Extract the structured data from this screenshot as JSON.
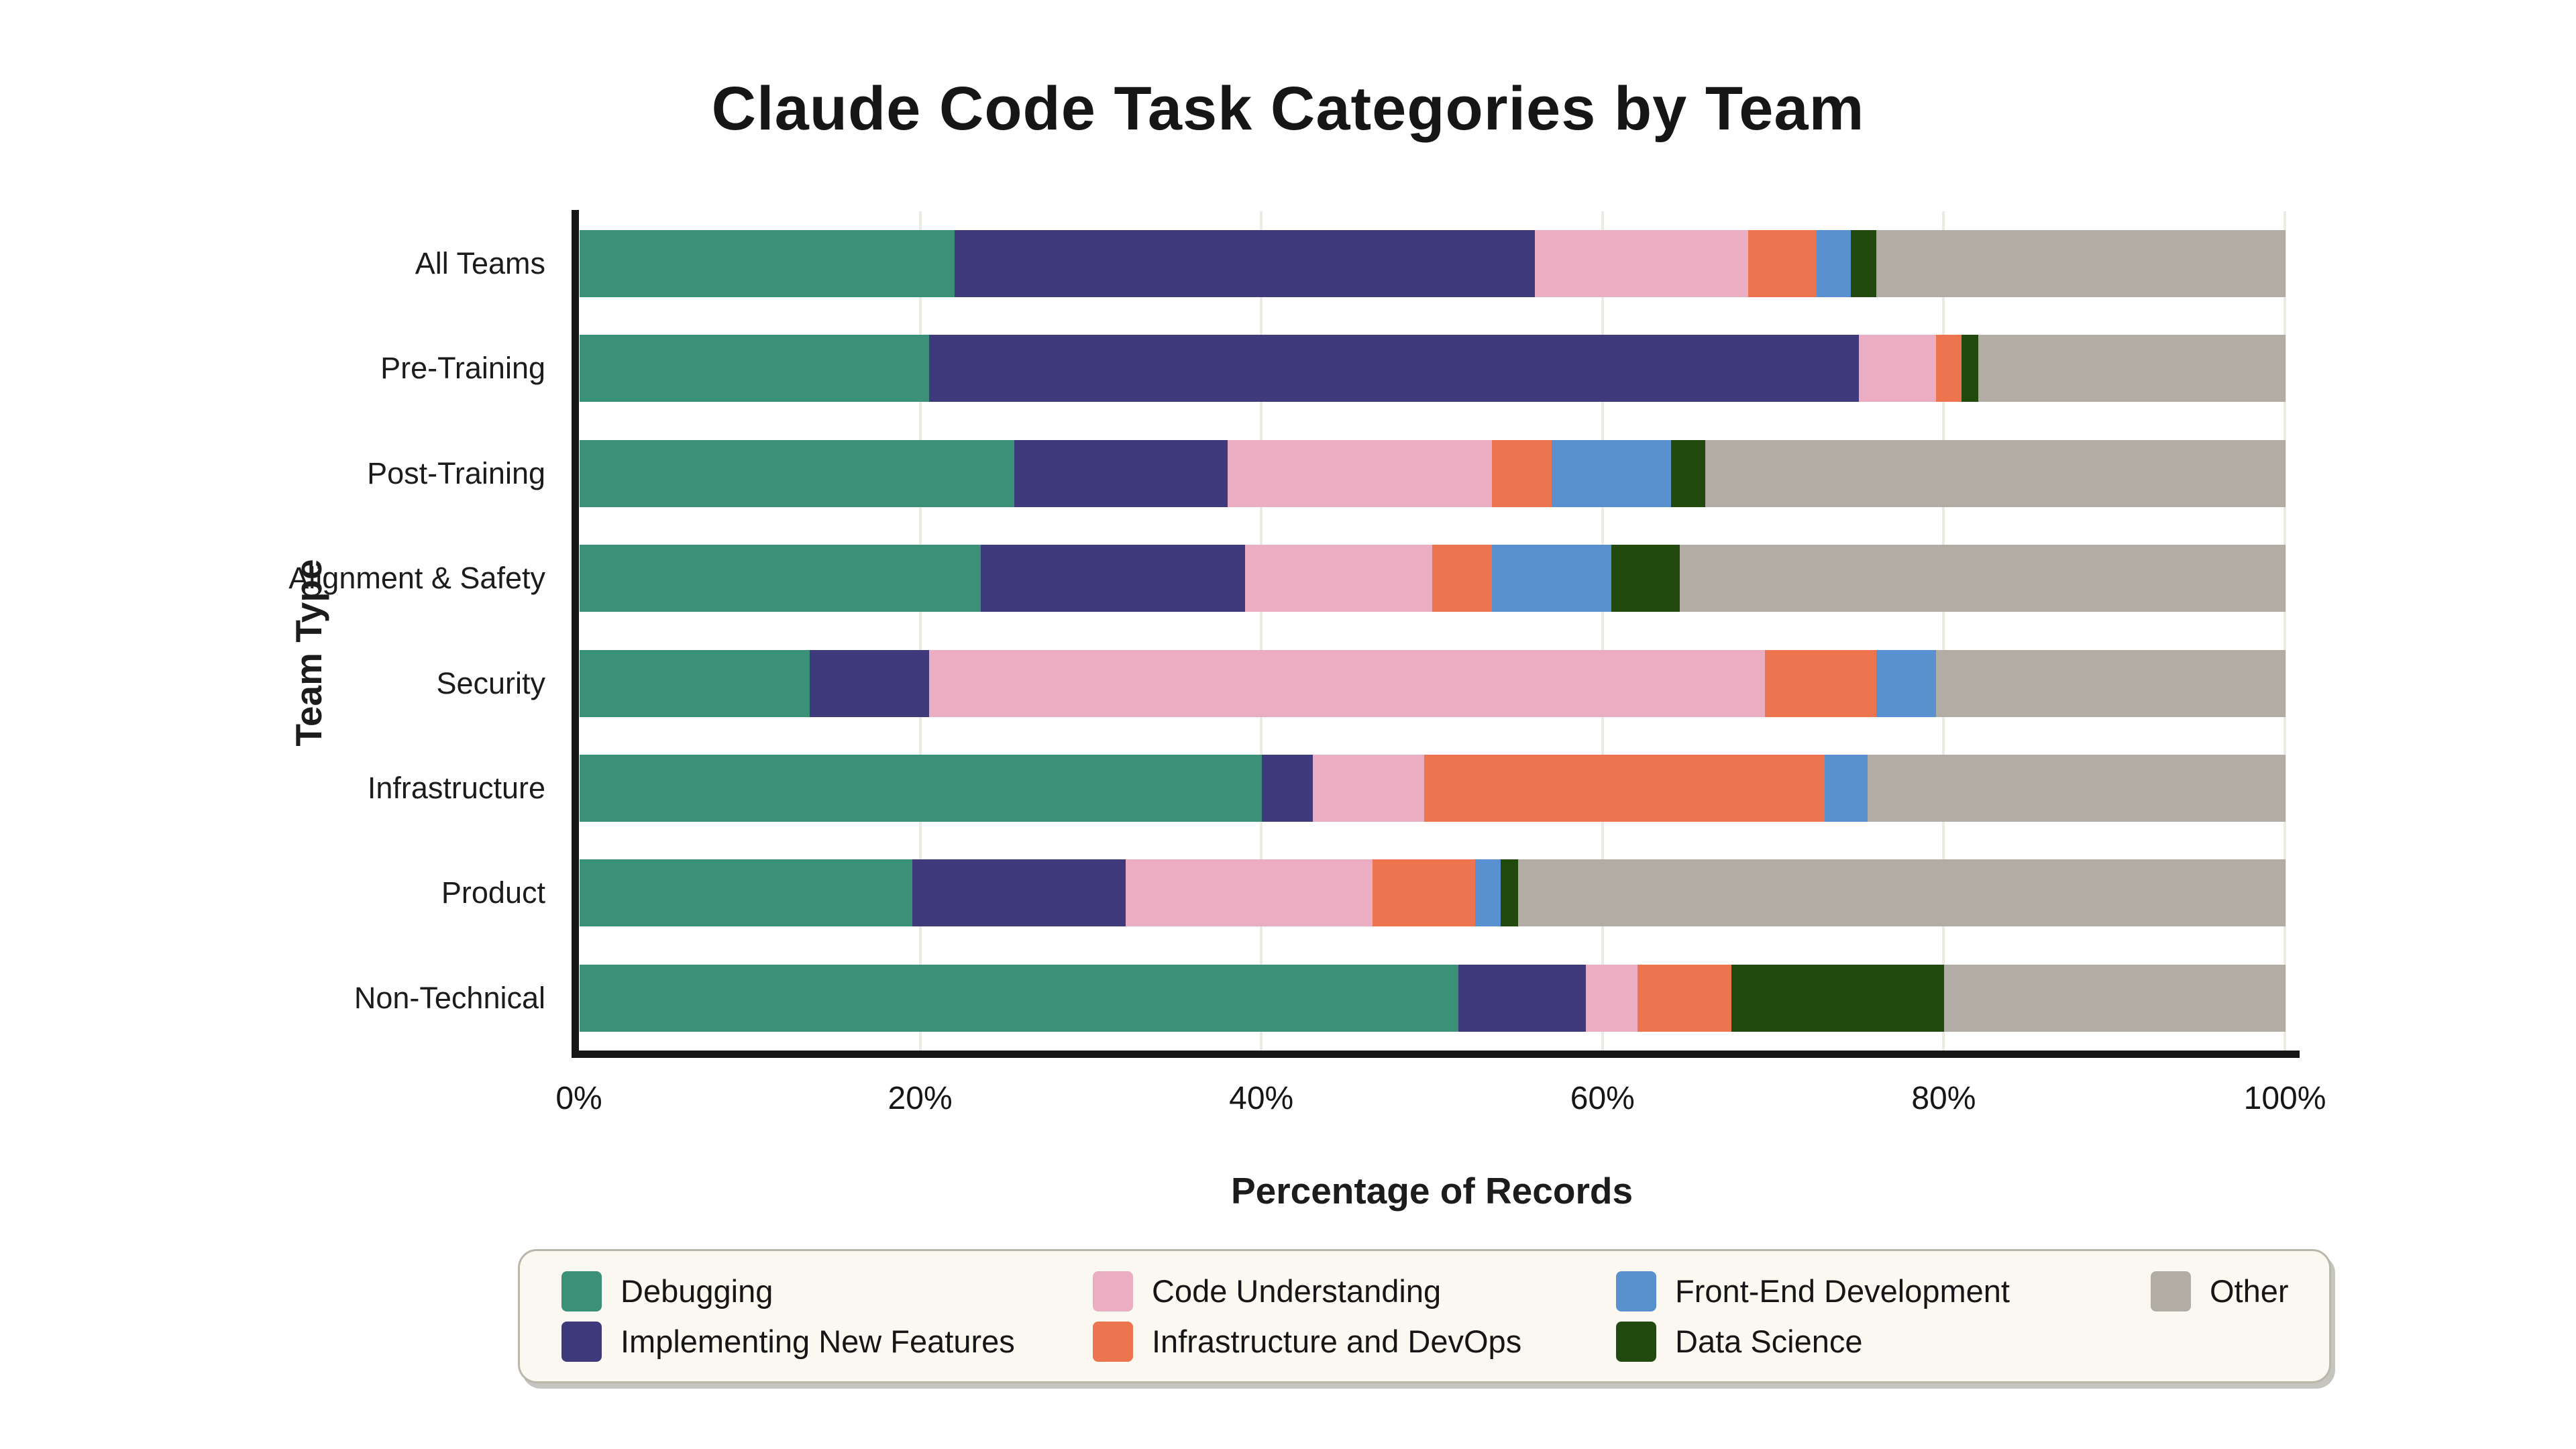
{
  "title": "Claude Code Task Categories by Team",
  "x_axis": {
    "label": "Percentage of Records",
    "ticks": [
      {
        "label": "0%",
        "value": 0
      },
      {
        "label": "20%",
        "value": 20
      },
      {
        "label": "40%",
        "value": 40
      },
      {
        "label": "60%",
        "value": 60
      },
      {
        "label": "80%",
        "value": 80
      },
      {
        "label": "100%",
        "value": 100
      }
    ]
  },
  "y_axis": {
    "label": "Team Type"
  },
  "legend": {
    "items": [
      {
        "label": "Debugging",
        "color": "#3a9178"
      },
      {
        "label": "Implementing New Features",
        "color": "#3f3a7c"
      },
      {
        "label": "Code Understanding",
        "color": "#eaadc2"
      },
      {
        "label": "Infrastructure and DevOps",
        "color": "#ec7550"
      },
      {
        "label": "Front-End Development",
        "color": "#5890d0"
      },
      {
        "label": "Data Science",
        "color": "#234a0e"
      },
      {
        "label": "Other",
        "color": "#b1ada5"
      }
    ]
  },
  "chart_data": {
    "type": "bar",
    "orientation": "horizontal",
    "stacked": true,
    "title": "Claude Code Task Categories by Team",
    "xlabel": "Percentage of Records",
    "ylabel": "Team Type",
    "xlim": [
      0,
      100
    ],
    "grid": true,
    "legend_position": "bottom",
    "categories": [
      "All Teams",
      "Pre-Training",
      "Post-Training",
      "Alignment & Safety",
      "Security",
      "Infrastructure",
      "Product",
      "Non-Technical"
    ],
    "series": [
      {
        "name": "Debugging",
        "color": "#3a9178",
        "values": [
          22.0,
          20.5,
          25.5,
          23.5,
          13.5,
          40.0,
          19.5,
          51.5
        ]
      },
      {
        "name": "Implementing New Features",
        "color": "#3f3a7c",
        "values": [
          34.0,
          54.5,
          12.5,
          15.5,
          7.0,
          3.0,
          12.5,
          7.5
        ]
      },
      {
        "name": "Code Understanding",
        "color": "#eaadc2",
        "values": [
          12.5,
          4.5,
          15.5,
          11.0,
          49.0,
          6.5,
          14.5,
          3.0
        ]
      },
      {
        "name": "Infrastructure and DevOps",
        "color": "#ec7550",
        "values": [
          4.0,
          1.5,
          3.5,
          3.5,
          6.5,
          23.5,
          6.0,
          5.5
        ]
      },
      {
        "name": "Front-End Development",
        "color": "#5890d0",
        "values": [
          2.0,
          0.0,
          7.0,
          7.0,
          3.5,
          2.5,
          1.5,
          0.0
        ]
      },
      {
        "name": "Data Science",
        "color": "#234a0e",
        "values": [
          1.5,
          1.0,
          2.0,
          4.0,
          0.0,
          0.0,
          1.0,
          12.5
        ]
      },
      {
        "name": "Other",
        "color": "#b1ada5",
        "values": [
          24.0,
          18.0,
          34.0,
          35.5,
          20.5,
          24.5,
          45.0,
          20.0
        ]
      }
    ]
  }
}
